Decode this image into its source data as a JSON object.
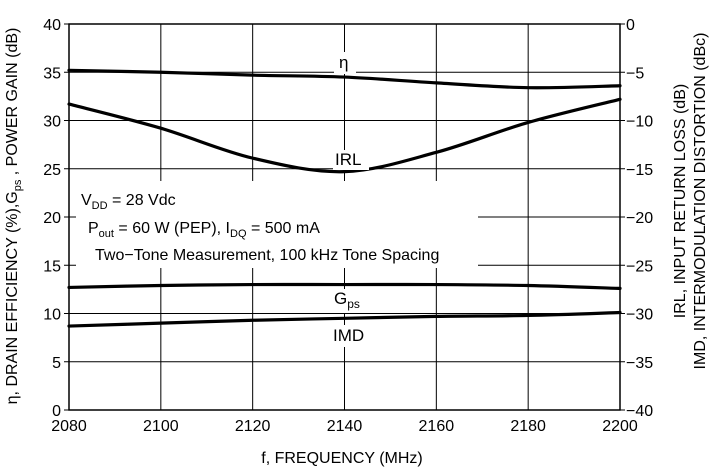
{
  "chart_data": {
    "type": "line",
    "xlabel": "f, FREQUENCY (MHz)",
    "ylabel_left": "η, DRAIN EFFICIENCY (%),G",
    "ylabel_left_sub": "ps",
    "ylabel_left_tail": " , POWER GAIN (dB)",
    "ylabel_right_1": "IRL, INPUT RETURN LOSS (dB)",
    "ylabel_right_2": "IMD, INTERMODULATION DISTORTION (dBc)",
    "xlim": [
      2080,
      2200
    ],
    "ylim_left": [
      0,
      40
    ],
    "ylim_right": [
      -40,
      0
    ],
    "x_ticks": [
      "2080",
      "2100",
      "2120",
      "2140",
      "2160",
      "2180",
      "2200"
    ],
    "left_ticks": [
      "0",
      "5",
      "10",
      "15",
      "20",
      "25",
      "30",
      "35",
      "40"
    ],
    "right_ticks": [
      "−40",
      "−35",
      "−30",
      "−25",
      "−20",
      "−15",
      "−10",
      "−5",
      "0"
    ],
    "grid": true,
    "annotations": {
      "line1_main": "V",
      "line1_sub": "DD",
      "line1_tail": " = 28 Vdc",
      "line2_a": "P",
      "line2_a_sub": "out",
      "line2_b": " = 60 W (PEP), I",
      "line2_b_sub": "DQ",
      "line2_c": " = 500 mA",
      "line3": "Two−Tone Measurement, 100 kHz Tone Spacing"
    },
    "series": [
      {
        "name": "η",
        "axis": "left",
        "x": [
          2080,
          2100,
          2120,
          2140,
          2160,
          2180,
          2200
        ],
        "y": [
          35.2,
          35.0,
          34.7,
          34.5,
          33.9,
          33.4,
          33.6
        ]
      },
      {
        "name": "IRL",
        "axis": "right",
        "x": [
          2080,
          2100,
          2120,
          2140,
          2160,
          2180,
          2200
        ],
        "y": [
          -8.3,
          -10.8,
          -13.9,
          -15.3,
          -13.3,
          -10.2,
          -7.8
        ]
      },
      {
        "name": "G",
        "name_sub": "ps",
        "axis": "left",
        "x": [
          2080,
          2100,
          2120,
          2140,
          2160,
          2180,
          2200
        ],
        "y": [
          12.7,
          12.9,
          13.0,
          13.0,
          13.0,
          12.9,
          12.6
        ]
      },
      {
        "name": "IMD",
        "axis": "right",
        "x": [
          2080,
          2100,
          2120,
          2140,
          2160,
          2180,
          2200
        ],
        "y": [
          -31.3,
          -31.0,
          -30.7,
          -30.5,
          -30.3,
          -30.2,
          -29.9
        ]
      }
    ]
  }
}
